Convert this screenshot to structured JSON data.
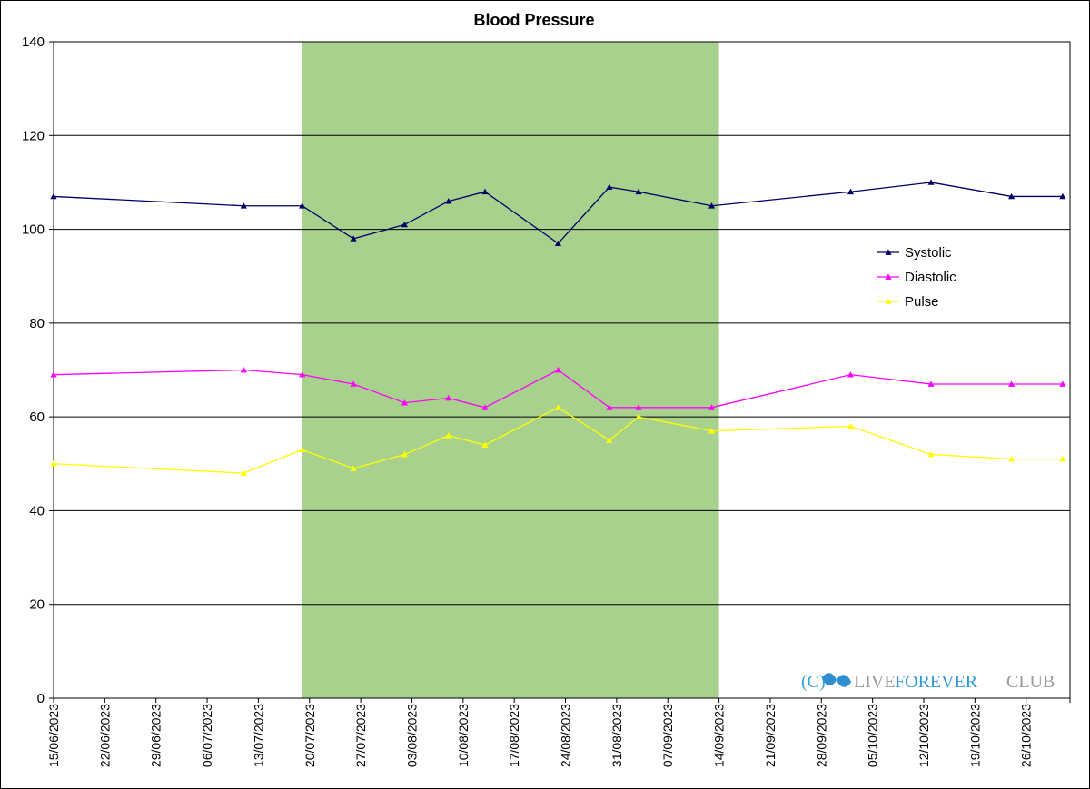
{
  "chart_data": {
    "type": "line",
    "title": "Blood Pressure",
    "xlabel": "",
    "ylabel": "",
    "ylim": [
      0,
      140
    ],
    "yticks": [
      0,
      20,
      40,
      60,
      80,
      100,
      120,
      140
    ],
    "xlim": [
      "15/06/2023",
      "01/11/2023"
    ],
    "xtick_labels": [
      "15/06/2023",
      "22/06/2023",
      "29/06/2023",
      "06/07/2023",
      "13/07/2023",
      "20/07/2023",
      "27/07/2023",
      "03/08/2023",
      "10/08/2023",
      "17/08/2023",
      "24/08/2023",
      "31/08/2023",
      "07/09/2023",
      "14/09/2023",
      "21/09/2023",
      "28/09/2023",
      "05/10/2023",
      "12/10/2023",
      "19/10/2023",
      "26/10/2023"
    ],
    "grid": "horizontal",
    "legend_position": "right",
    "highlight_range": {
      "start": "19/07/2023",
      "end": "14/09/2023",
      "color": "#a9d18e"
    },
    "x": [
      "15/06/2023",
      "11/07/2023",
      "19/07/2023",
      "26/07/2023",
      "02/08/2023",
      "08/08/2023",
      "13/08/2023",
      "23/08/2023",
      "30/08/2023",
      "03/09/2023",
      "13/09/2023",
      "02/10/2023",
      "13/10/2023",
      "24/10/2023",
      "31/10/2023"
    ],
    "series": [
      {
        "name": "Systolic",
        "color": "#000066",
        "values": [
          107,
          105,
          105,
          98,
          101,
          106,
          108,
          97,
          109,
          108,
          105,
          108,
          110,
          107,
          107
        ]
      },
      {
        "name": "Diastolic",
        "color": "#ff00ff",
        "values": [
          69,
          70,
          69,
          67,
          63,
          64,
          62,
          70,
          62,
          62,
          62,
          69,
          67,
          67,
          67
        ]
      },
      {
        "name": "Pulse",
        "color": "#ffff00",
        "values": [
          50,
          48,
          53,
          49,
          52,
          56,
          54,
          62,
          55,
          60,
          57,
          58,
          52,
          51,
          51
        ]
      }
    ]
  },
  "watermark": {
    "prefix": "(C)",
    "live": "LIVE",
    "forever": "FOREVER",
    "club": "CLUB"
  }
}
